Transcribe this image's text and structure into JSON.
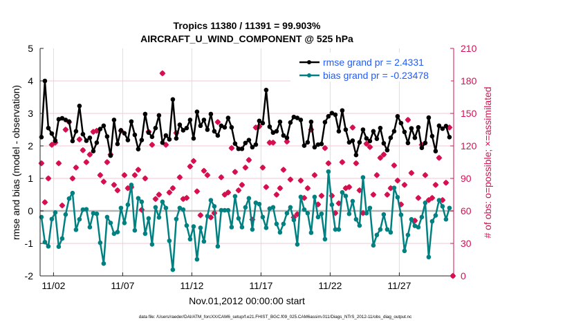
{
  "chart_data": {
    "type": "line",
    "title": [
      "Tropics 11380 / 11391 = 99.903%",
      "AIRCRAFT_U_WIND_COMPONENT @ 525 hPa"
    ],
    "xlabel": "Nov.01,2012 00:00:00 start",
    "ylabel": "rmse and bias (model - observation)",
    "ylabel_right": "# of obs: o=possible; ×=assimilated",
    "footer": "data file: /Users/raeder/DAI/ATM_forcXX/CAM6_setup/f.e21.FHIST_BGC.f09_025.CAM6assim.011/Diags_NTrS_2012-11/obs_diag_output.nc",
    "x_ticks": [
      {
        "day": 1,
        "label": "11/02"
      },
      {
        "day": 6,
        "label": "11/07"
      },
      {
        "day": 11,
        "label": "11/12"
      },
      {
        "day": 16,
        "label": "11/17"
      },
      {
        "day": 21,
        "label": "11/22"
      },
      {
        "day": 26,
        "label": "11/27"
      }
    ],
    "x_units": "days since Nov.01,2012 00:00",
    "x_start_day": 0.125,
    "x_step_day": 0.25,
    "xlim": [
      0.03,
      29.93
    ],
    "ylim": [
      -2,
      5
    ],
    "ylim_right": [
      0,
      210
    ],
    "y_ticks": [
      -2,
      -1,
      0,
      1,
      2,
      3,
      4,
      5
    ],
    "y_ticks_right": [
      0,
      30,
      60,
      90,
      120,
      150,
      180,
      210
    ],
    "grid": "on",
    "legend_placement": "top-right",
    "colors": {
      "rmse": "#000000",
      "bias": "#008080",
      "obs": "#d6104f",
      "legend_text": "#1f5cff",
      "zero_line": "#b3b3b3"
    },
    "series": [
      {
        "name": "rmse grand pr = 2.4331",
        "axis": "left",
        "marker": "dot",
        "values": [
          2.27,
          4.0,
          2.55,
          2.38,
          2.16,
          2.82,
          2.85,
          2.8,
          2.75,
          2.15,
          2.45,
          3.23,
          2.36,
          2.16,
          2.25,
          1.84,
          2.1,
          2.52,
          2.62,
          2.29,
          1.7,
          2.8,
          2.06,
          2.48,
          2.39,
          2.18,
          2.75,
          2.34,
          1.9,
          2.18,
          2.98,
          2.41,
          2.28,
          2.55,
          2.94,
          2.1,
          2.32,
          2.2,
          3.43,
          2.23,
          2.65,
          2.48,
          2.55,
          2.8,
          2.23,
          3.05,
          2.62,
          2.8,
          2.5,
          2.98,
          2.45,
          2.32,
          2.62,
          2.57,
          2.86,
          2.57,
          2.07,
          1.91,
          1.91,
          2.09,
          2.18,
          1.96,
          2.04,
          2.77,
          2.7,
          3.72,
          2.59,
          2.41,
          2.45,
          2.74,
          2.32,
          2.25,
          2.72,
          2.89,
          2.86,
          2.8,
          2.01,
          2.11,
          2.74,
          1.96,
          2.04,
          2.06,
          2.73,
          2.91,
          3.01,
          2.96,
          2.45,
          3.09,
          2.5,
          2.11,
          2.16,
          1.72,
          2.11,
          2.5,
          2.23,
          2.15,
          2.45,
          2.22,
          2.55,
          2.08,
          1.87,
          2.25,
          2.45,
          2.91,
          2.7,
          2.43,
          2.09,
          2.54,
          2.25,
          2.57,
          1.94,
          2.09,
          2.87,
          2.3,
          1.84,
          2.62,
          2.53,
          2.61,
          2.27
        ]
      },
      {
        "name": "bias grand pr = -0.23478",
        "axis": "left",
        "marker": "dot",
        "values": [
          -0.19,
          -0.96,
          -1.09,
          -0.25,
          -0.05,
          -1.1,
          -0.85,
          -0.11,
          0.38,
          0.55,
          -0.58,
          -0.26,
          0.04,
          0.05,
          -0.5,
          -0.07,
          -0.09,
          -0.98,
          -1.62,
          -0.19,
          -0.37,
          -0.7,
          -0.65,
          0.09,
          -0.37,
          0.19,
          0.8,
          -0.6,
          0.39,
          0.28,
          -0.7,
          -0.23,
          -1.03,
          0.11,
          -0.2,
          0.28,
          0.09,
          -0.92,
          -1.81,
          -0.25,
          0.09,
          0.04,
          -0.45,
          -0.87,
          -0.48,
          -1.49,
          -0.52,
          -0.94,
          -0.16,
          0.33,
          0.14,
          -1.09,
          0.02,
          0.02,
          0.02,
          -0.5,
          0.45,
          -0.23,
          -0.5,
          0.11,
          0.39,
          -0.57,
          0.25,
          0.21,
          -0.19,
          -0.52,
          0.07,
          0.11,
          -0.4,
          -0.66,
          -0.4,
          -0.07,
          0.11,
          -0.28,
          -1.03,
          0.43,
          0.04,
          -0.07,
          -0.67,
          0.43,
          -0.19,
          -0.09,
          -0.87,
          1.21,
          0.19,
          -0.57,
          -0.57,
          0.57,
          0.46,
          -0.09,
          0.3,
          -0.26,
          -0.45,
          1.03,
          -0.07,
          0.09,
          -1.06,
          -0.74,
          -0.57,
          -0.11,
          -0.57,
          -0.66,
          0.71,
          0.42,
          -0.12,
          -1.23,
          -0.74,
          -0.26,
          -0.46,
          -0.5,
          -0.19,
          0.25,
          -1.42,
          -0.32,
          -0.14,
          0.33,
          0.14,
          -0.26,
          0.09
        ]
      },
      {
        "name": "assimilated",
        "axis": "right",
        "marker": "x",
        "values": [
          104,
          68,
          90,
          121,
          123,
          104,
          65,
          135,
          142,
          90,
          100,
          126,
          116,
          105,
          112,
          133,
          134,
          93,
          87,
          105,
          112,
          84,
          79,
          134,
          93,
          81,
          82,
          93,
          98,
          61,
          90,
          133,
          121,
          71,
          75,
          187,
          121,
          77,
          81,
          132,
          91,
          71,
          72,
          101,
          106,
          78,
          56,
          97,
          93,
          54,
          58,
          142,
          91,
          75,
          77,
          118,
          96,
          79,
          84,
          100,
          107,
          52,
          137,
          138,
          100,
          82,
          123,
          123,
          75,
          81,
          98,
          124,
          89,
          54,
          57,
          88,
          72,
          81,
          135,
          93,
          66,
          74,
          118,
          104,
          74,
          58,
          67,
          105,
          81,
          82,
          137,
          104,
          79,
          58,
          122,
          119,
          75,
          93,
          109,
          112,
          75,
          81,
          102,
          88,
          66,
          84,
          144,
          95,
          51,
          72,
          121,
          93,
          70,
          72,
          84,
          109,
          70,
          86,
          137,
          0
        ]
      },
      {
        "name": "possible",
        "axis": "right",
        "marker": "o",
        "values": [
          104,
          68,
          90,
          121,
          123,
          104,
          65,
          135,
          142,
          90,
          100,
          126,
          116,
          105,
          112,
          133,
          134,
          93,
          87,
          105,
          112,
          84,
          79,
          134,
          93,
          81,
          82,
          93,
          98,
          61,
          90,
          133,
          121,
          71,
          75,
          187,
          121,
          77,
          81,
          132,
          91,
          71,
          72,
          101,
          106,
          78,
          56,
          97,
          93,
          54,
          58,
          142,
          91,
          75,
          77,
          118,
          96,
          79,
          84,
          100,
          107,
          52,
          137,
          138,
          100,
          82,
          123,
          123,
          75,
          81,
          98,
          124,
          89,
          54,
          57,
          88,
          72,
          81,
          135,
          93,
          66,
          74,
          118,
          104,
          74,
          58,
          67,
          105,
          81,
          82,
          137,
          104,
          79,
          58,
          122,
          119,
          75,
          93,
          109,
          112,
          75,
          81,
          102,
          88,
          66,
          84,
          144,
          95,
          51,
          72,
          121,
          93,
          70,
          72,
          84,
          109,
          70,
          86,
          137,
          0
        ]
      }
    ]
  }
}
